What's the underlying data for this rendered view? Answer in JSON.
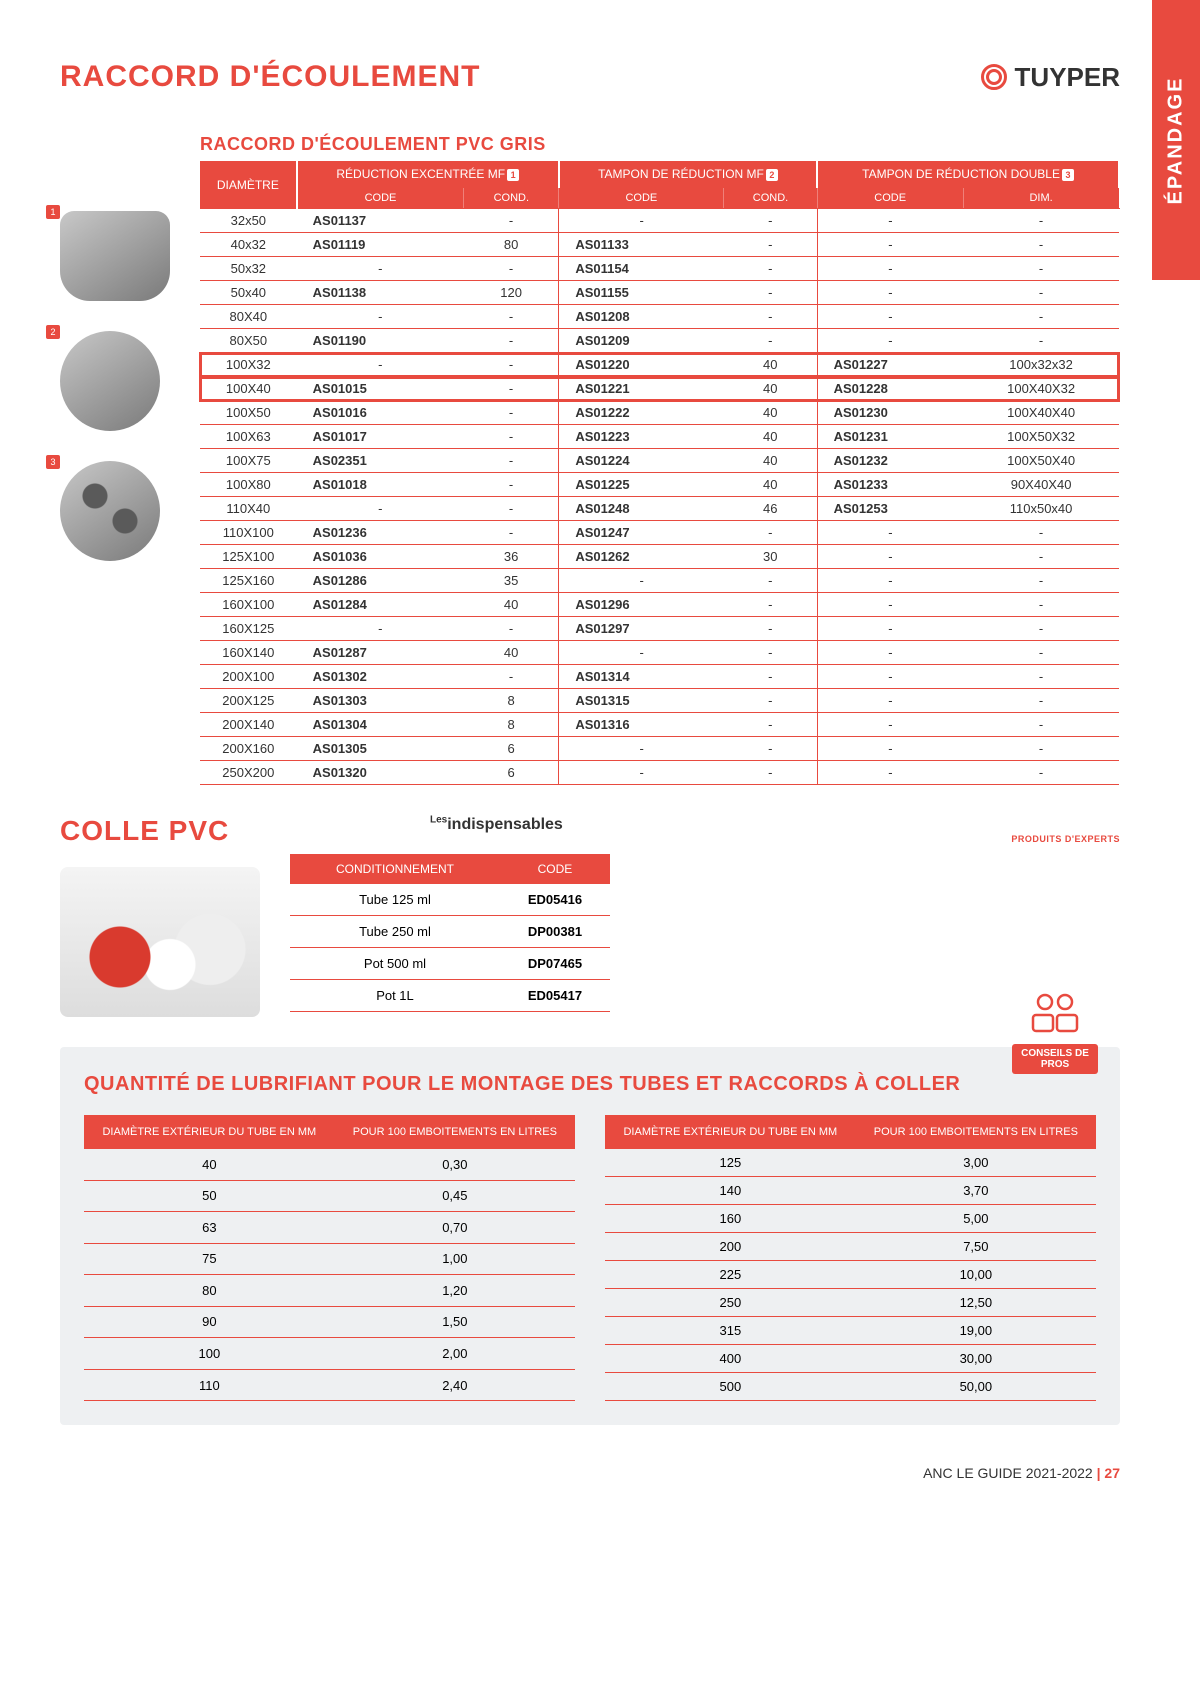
{
  "sideTab": "ÉPANDAGE",
  "title": "RACCORD D'ÉCOULEMENT",
  "brand": "TUYPER",
  "section1": {
    "heading": "RACCORD D'ÉCOULEMENT PVC GRIS",
    "headerGroups": {
      "diam": "DIAMÈTRE",
      "g1": "RÉDUCTION EXCENTRÉE MF",
      "g2": "TAMPON DE RÉDUCTION MF",
      "g3": "TAMPON DE RÉDUCTION DOUBLE",
      "sup1": "1",
      "sup2": "2",
      "sup3": "3"
    },
    "subHeaders": {
      "code": "CODE",
      "cond": "COND.",
      "dim": "DIM."
    },
    "rows": [
      {
        "d": "32x50",
        "c1": "AS01137",
        "q1": "-",
        "c2": "-",
        "q2": "-",
        "c3": "-",
        "d3": "-"
      },
      {
        "d": "40x32",
        "c1": "AS01119",
        "q1": "80",
        "c2": "AS01133",
        "q2": "-",
        "c3": "-",
        "d3": "-"
      },
      {
        "d": "50x32",
        "c1": "-",
        "q1": "-",
        "c2": "AS01154",
        "q2": "-",
        "c3": "-",
        "d3": "-"
      },
      {
        "d": "50x40",
        "c1": "AS01138",
        "q1": "120",
        "c2": "AS01155",
        "q2": "-",
        "c3": "-",
        "d3": "-"
      },
      {
        "d": "80X40",
        "c1": "-",
        "q1": "-",
        "c2": "AS01208",
        "q2": "-",
        "c3": "-",
        "d3": "-"
      },
      {
        "d": "80X50",
        "c1": "AS01190",
        "q1": "-",
        "c2": "AS01209",
        "q2": "-",
        "c3": "-",
        "d3": "-"
      },
      {
        "d": "100X32",
        "c1": "-",
        "q1": "-",
        "c2": "AS01220",
        "q2": "40",
        "c3": "AS01227",
        "d3": "100x32x32",
        "hl": true
      },
      {
        "d": "100X40",
        "c1": "AS01015",
        "q1": "-",
        "c2": "AS01221",
        "q2": "40",
        "c3": "AS01228",
        "d3": "100X40X32",
        "hl": true
      },
      {
        "d": "100X50",
        "c1": "AS01016",
        "q1": "-",
        "c2": "AS01222",
        "q2": "40",
        "c3": "AS01230",
        "d3": "100X40X40"
      },
      {
        "d": "100X63",
        "c1": "AS01017",
        "q1": "-",
        "c2": "AS01223",
        "q2": "40",
        "c3": "AS01231",
        "d3": "100X50X32"
      },
      {
        "d": "100X75",
        "c1": "AS02351",
        "q1": "-",
        "c2": "AS01224",
        "q2": "40",
        "c3": "AS01232",
        "d3": "100X50X40"
      },
      {
        "d": "100X80",
        "c1": "AS01018",
        "q1": "-",
        "c2": "AS01225",
        "q2": "40",
        "c3": "AS01233",
        "d3": "90X40X40"
      },
      {
        "d": "110X40",
        "c1": "-",
        "q1": "-",
        "c2": "AS01248",
        "q2": "46",
        "c3": "AS01253",
        "d3": "110x50x40"
      },
      {
        "d": "110X100",
        "c1": "AS01236",
        "q1": "-",
        "c2": "AS01247",
        "q2": "-",
        "c3": "-",
        "d3": "-"
      },
      {
        "d": "125X100",
        "c1": "AS01036",
        "q1": "36",
        "c2": "AS01262",
        "q2": "30",
        "c3": "-",
        "d3": "-"
      },
      {
        "d": "125X160",
        "c1": "AS01286",
        "q1": "35",
        "c2": "-",
        "q2": "-",
        "c3": "-",
        "d3": "-"
      },
      {
        "d": "160X100",
        "c1": "AS01284",
        "q1": "40",
        "c2": "AS01296",
        "q2": "-",
        "c3": "-",
        "d3": "-"
      },
      {
        "d": "160X125",
        "c1": "-",
        "q1": "-",
        "c2": "AS01297",
        "q2": "-",
        "c3": "-",
        "d3": "-"
      },
      {
        "d": "160X140",
        "c1": "AS01287",
        "q1": "40",
        "c2": "-",
        "q2": "-",
        "c3": "-",
        "d3": "-"
      },
      {
        "d": "200X100",
        "c1": "AS01302",
        "q1": "-",
        "c2": "AS01314",
        "q2": "-",
        "c3": "-",
        "d3": "-"
      },
      {
        "d": "200X125",
        "c1": "AS01303",
        "q1": "8",
        "c2": "AS01315",
        "q2": "-",
        "c3": "-",
        "d3": "-"
      },
      {
        "d": "200X140",
        "c1": "AS01304",
        "q1": "8",
        "c2": "AS01316",
        "q2": "-",
        "c3": "-",
        "d3": "-"
      },
      {
        "d": "200X160",
        "c1": "AS01305",
        "q1": "6",
        "c2": "-",
        "q2": "-",
        "c3": "-",
        "d3": "-"
      },
      {
        "d": "250X200",
        "c1": "AS01320",
        "q1": "6",
        "c2": "-",
        "q2": "-",
        "c3": "-",
        "d3": "-"
      }
    ]
  },
  "section2": {
    "heading": "COLLE PVC",
    "indispensables": {
      "pre": "Les",
      "main": "indispensables",
      "sub": "PRODUITS D'EXPERTS"
    },
    "headers": {
      "cond": "CONDITIONNEMENT",
      "code": "CODE"
    },
    "rows": [
      {
        "cond": "Tube 125 ml",
        "code": "ED05416"
      },
      {
        "cond": "Tube 250 ml",
        "code": "DP00381"
      },
      {
        "cond": "Pot 500 ml",
        "code": "DP07465"
      },
      {
        "cond": "Pot 1L",
        "code": "ED05417"
      }
    ]
  },
  "conseils": "CONSEILS DE PROS",
  "section3": {
    "heading": "QUANTITÉ DE LUBRIFIANT POUR LE MONTAGE DES TUBES ET RACCORDS À COLLER",
    "headers": {
      "diam": "DIAMÈTRE EXTÉRIEUR DU TUBE EN MM",
      "qty": "POUR 100 EMBOITEMENTS EN LITRES"
    },
    "left": [
      {
        "d": "40",
        "q": "0,30"
      },
      {
        "d": "50",
        "q": "0,45"
      },
      {
        "d": "63",
        "q": "0,70"
      },
      {
        "d": "75",
        "q": "1,00"
      },
      {
        "d": "80",
        "q": "1,20"
      },
      {
        "d": "90",
        "q": "1,50"
      },
      {
        "d": "100",
        "q": "2,00"
      },
      {
        "d": "110",
        "q": "2,40"
      }
    ],
    "right": [
      {
        "d": "125",
        "q": "3,00"
      },
      {
        "d": "140",
        "q": "3,70"
      },
      {
        "d": "160",
        "q": "5,00"
      },
      {
        "d": "200",
        "q": "7,50"
      },
      {
        "d": "225",
        "q": "10,00"
      },
      {
        "d": "250",
        "q": "12,50"
      },
      {
        "d": "315",
        "q": "19,00"
      },
      {
        "d": "400",
        "q": "30,00"
      },
      {
        "d": "500",
        "q": "50,00"
      }
    ]
  },
  "footer": {
    "text": "ANC LE GUIDE 2021-2022",
    "page": "27"
  },
  "imgTags": {
    "1": "1",
    "2": "2",
    "3": "3"
  }
}
